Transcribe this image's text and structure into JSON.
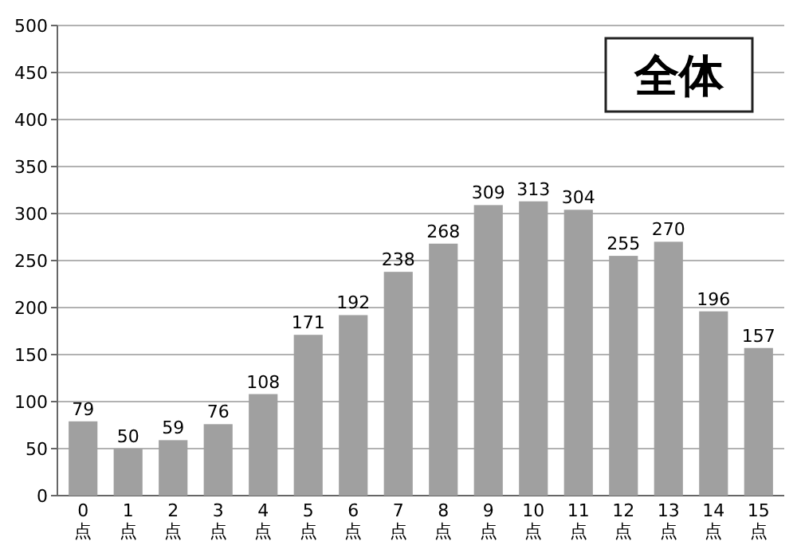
{
  "chart_data": {
    "type": "bar",
    "title": "全体",
    "categories": [
      "0点",
      "1点",
      "2点",
      "3点",
      "4点",
      "5点",
      "6点",
      "7点",
      "8点",
      "9点",
      "10点",
      "11点",
      "12点",
      "13点",
      "14点",
      "15点"
    ],
    "values": [
      79,
      50,
      59,
      76,
      108,
      171,
      192,
      238,
      268,
      309,
      313,
      304,
      255,
      270,
      196,
      157
    ],
    "color": "#a0a0a0",
    "ylim": [
      0,
      500
    ],
    "yticks": [
      0,
      50,
      100,
      150,
      200,
      250,
      300,
      350,
      400,
      450,
      500
    ],
    "grid": "y",
    "data_labels": true
  }
}
